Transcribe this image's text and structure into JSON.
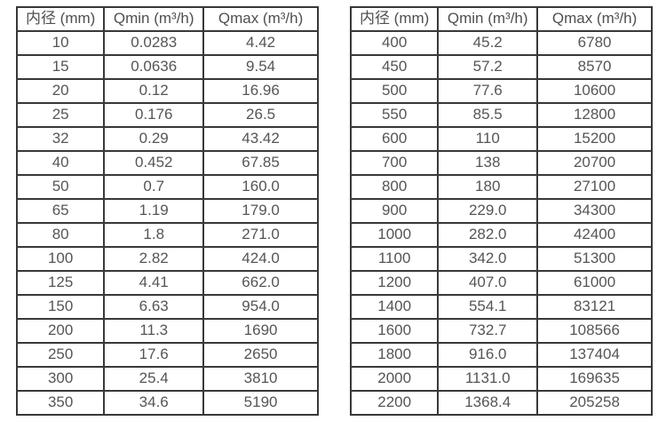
{
  "colors": {
    "background": "#ffffff",
    "border": "#383838",
    "text": "#555555"
  },
  "table_left": {
    "headers": [
      "内径 (mm)",
      "Qmin (m³/h)",
      "Qmax (m³/h)"
    ],
    "rows": [
      [
        "10",
        "0.0283",
        "4.42"
      ],
      [
        "15",
        "0.0636",
        "9.54"
      ],
      [
        "20",
        "0.12",
        "16.96"
      ],
      [
        "25",
        "0.176",
        "26.5"
      ],
      [
        "32",
        "0.29",
        "43.42"
      ],
      [
        "40",
        "0.452",
        "67.85"
      ],
      [
        "50",
        "0.7",
        "160.0"
      ],
      [
        "65",
        "1.19",
        "179.0"
      ],
      [
        "80",
        "1.8",
        "271.0"
      ],
      [
        "100",
        "2.82",
        "424.0"
      ],
      [
        "125",
        "4.41",
        "662.0"
      ],
      [
        "150",
        "6.63",
        "954.0"
      ],
      [
        "200",
        "11.3",
        "1690"
      ],
      [
        "250",
        "17.6",
        "2650"
      ],
      [
        "300",
        "25.4",
        "3810"
      ],
      [
        "350",
        "34.6",
        "5190"
      ]
    ]
  },
  "table_right": {
    "headers": [
      "内径 (mm)",
      "Qmin (m³/h)",
      "Qmax (m³/h)"
    ],
    "rows": [
      [
        "400",
        "45.2",
        "6780"
      ],
      [
        "450",
        "57.2",
        "8570"
      ],
      [
        "500",
        "77.6",
        "10600"
      ],
      [
        "550",
        "85.5",
        "12800"
      ],
      [
        "600",
        "110",
        "15200"
      ],
      [
        "700",
        "138",
        "20700"
      ],
      [
        "800",
        "180",
        "27100"
      ],
      [
        "900",
        "229.0",
        "34300"
      ],
      [
        "1000",
        "282.0",
        "42400"
      ],
      [
        "1100",
        "342.0",
        "51300"
      ],
      [
        "1200",
        "407.0",
        "61000"
      ],
      [
        "1400",
        "554.1",
        "83121"
      ],
      [
        "1600",
        "732.7",
        "108566"
      ],
      [
        "1800",
        "916.0",
        "137404"
      ],
      [
        "2000",
        "1131.0",
        "169635"
      ],
      [
        "2200",
        "1368.4",
        "205258"
      ]
    ]
  }
}
